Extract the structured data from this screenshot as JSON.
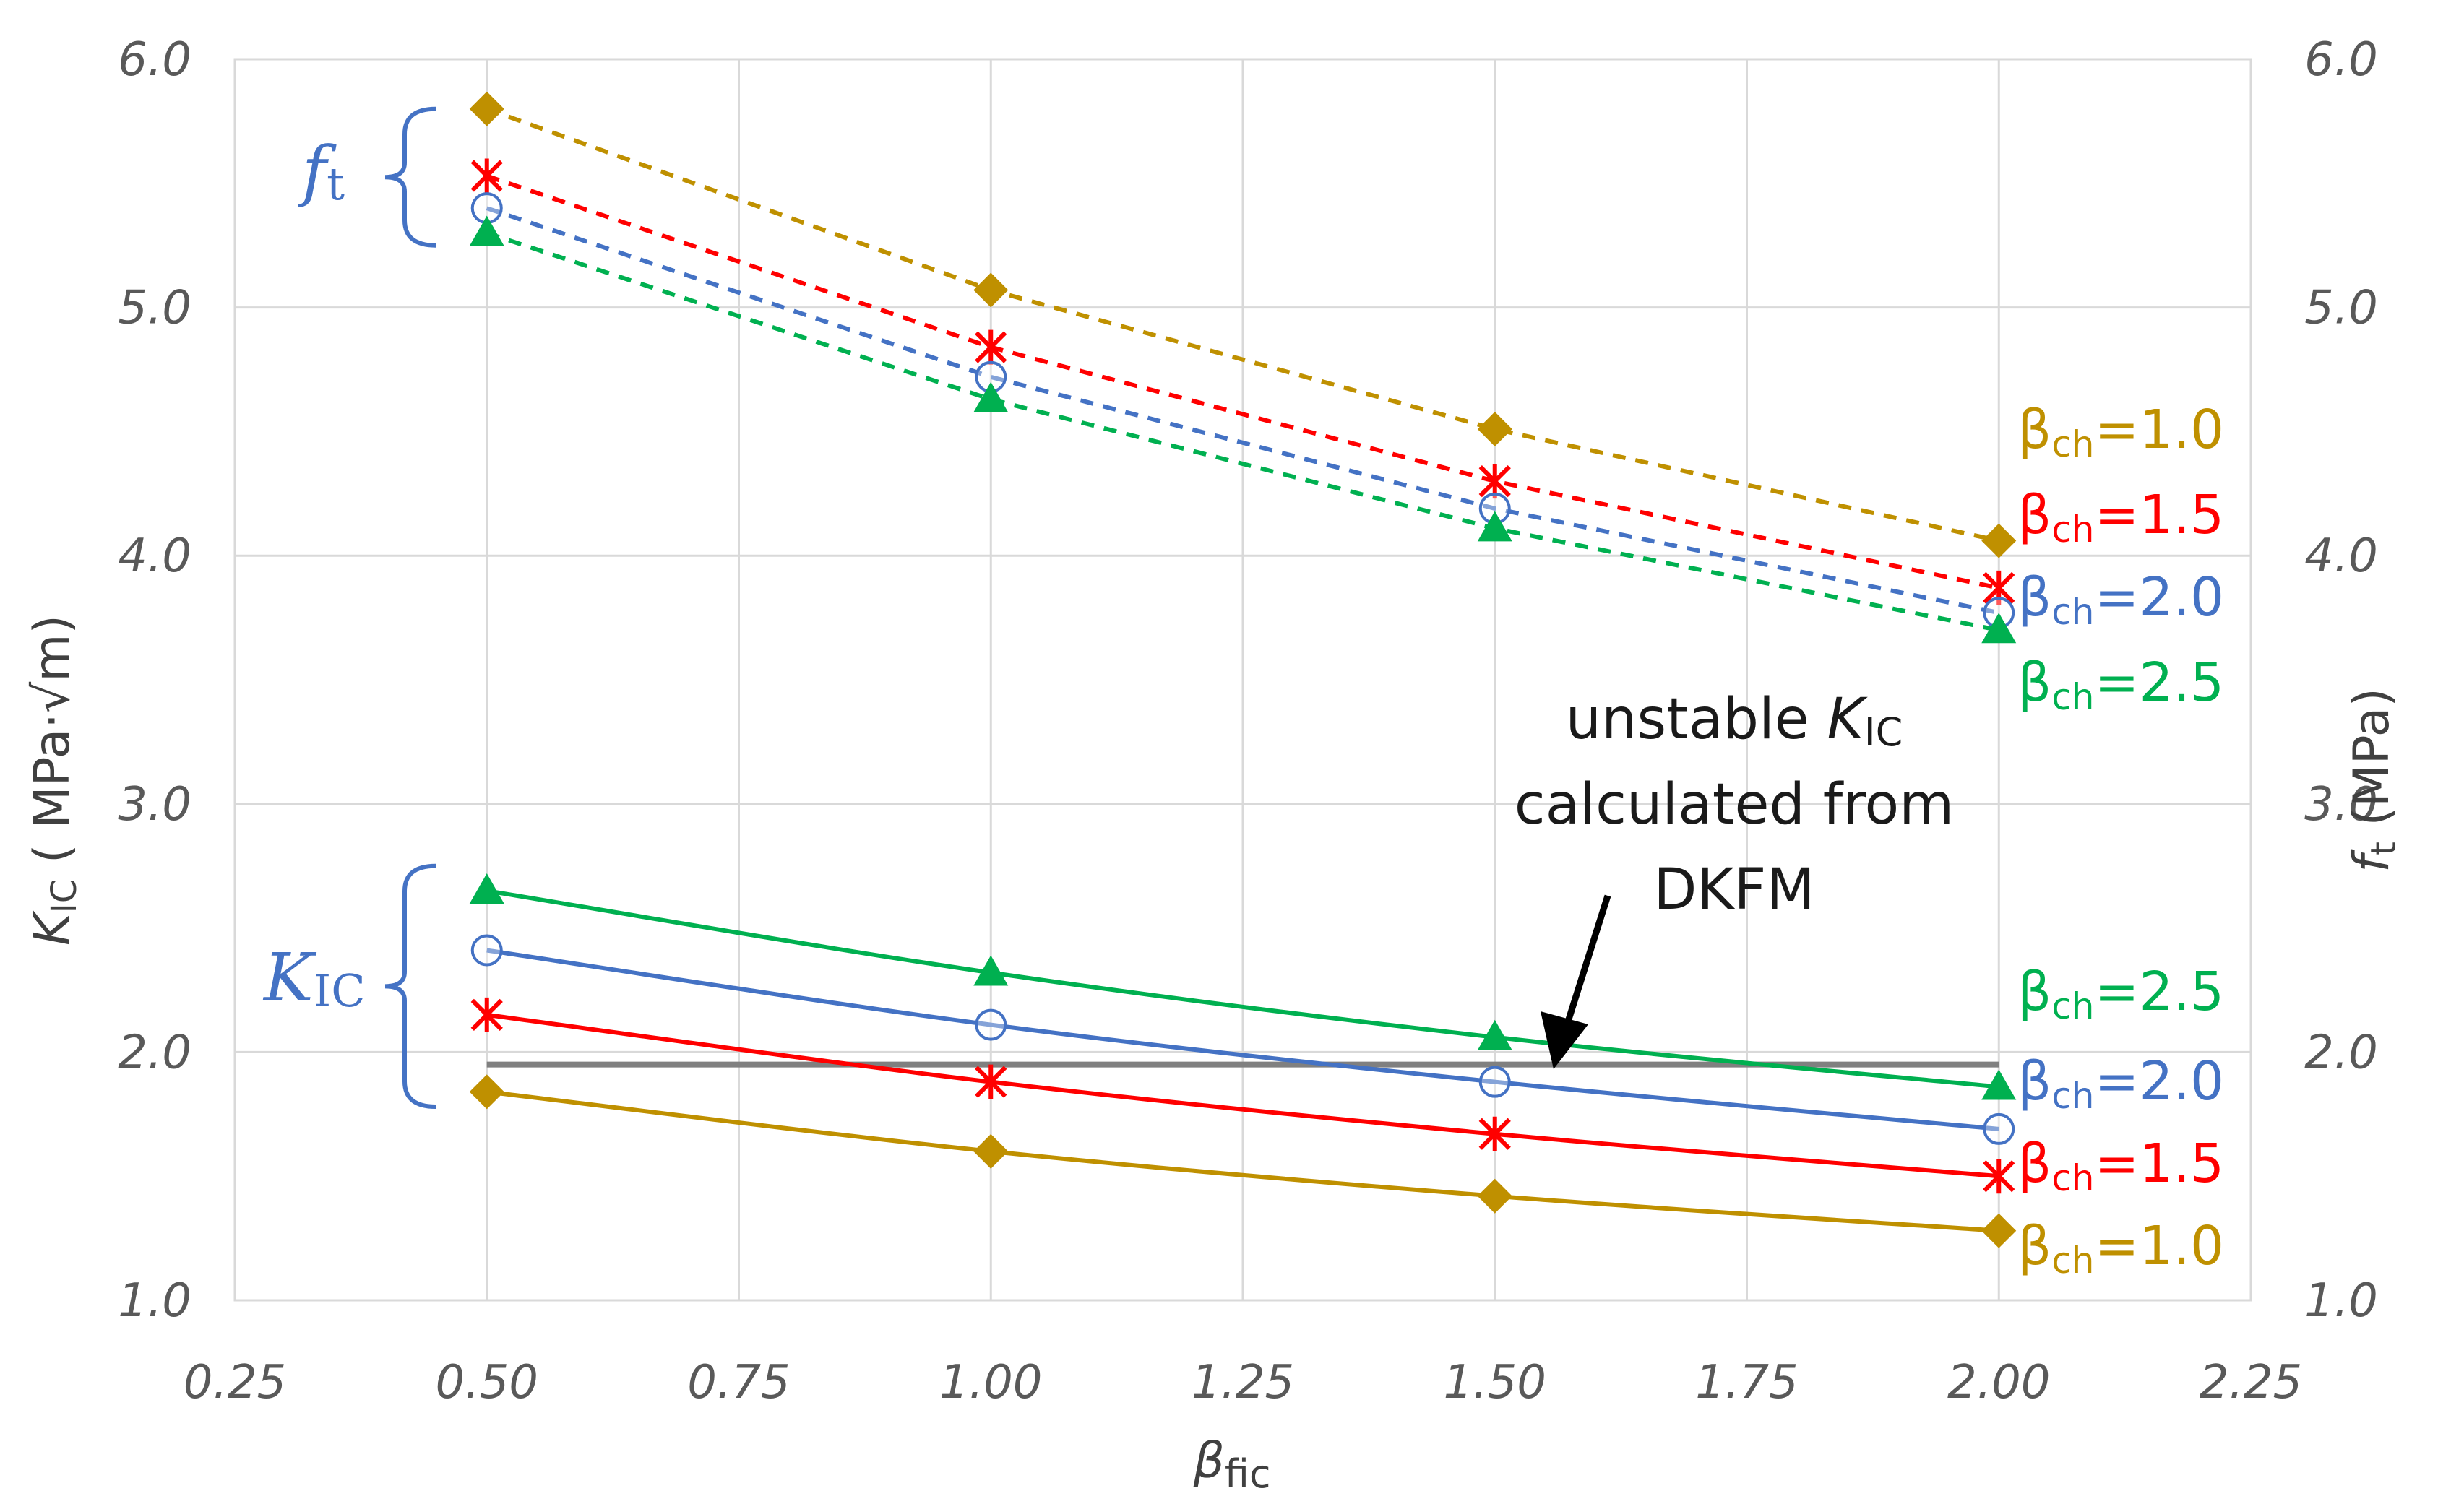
{
  "chart_data": {
    "type": "line",
    "x": [
      0.5,
      1.0,
      1.5,
      2.0
    ],
    "xlim": [
      0.25,
      2.25
    ],
    "ylim": [
      1.0,
      6.0
    ],
    "y2lim": [
      1.0,
      6.0
    ],
    "grid": true,
    "xticks": [
      "0.25",
      "0.50",
      "0.75",
      "1.00",
      "1.25",
      "1.50",
      "1.75",
      "2.00",
      "2.25"
    ],
    "yticks": [
      "1.0",
      "2.0",
      "3.0",
      "4.0",
      "5.0",
      "6.0"
    ],
    "y2ticks": [
      "1.0",
      "2.0",
      "3.0",
      "4.0",
      "5.0",
      "6.0"
    ],
    "xlabel": {
      "main": "β",
      "sub": "fic"
    },
    "ylabel": {
      "main": "K",
      "sub": "IC",
      "unit": " ( MPa·√m)"
    },
    "y2label": {
      "main": "f",
      "sub": "t",
      "unit": " (MPa)"
    },
    "ft_series": [
      {
        "name": "βch=1.0",
        "label_main": "β",
        "label_sub": "ch",
        "label_value": "=1.0",
        "color": "#bf9000",
        "marker": "diamond",
        "style": "dashed",
        "axis": "right",
        "values": [
          5.8,
          5.07,
          4.51,
          4.06
        ]
      },
      {
        "name": "βch=1.5",
        "label_main": "β",
        "label_sub": "ch",
        "label_value": "=1.5",
        "color": "#ff0000",
        "marker": "asterisk",
        "style": "dashed",
        "axis": "right",
        "values": [
          5.53,
          4.84,
          4.3,
          3.87
        ]
      },
      {
        "name": "βch=2.0",
        "label_main": "β",
        "label_sub": "ch",
        "label_value": "=2.0",
        "color": "#4472c4",
        "marker": "circle",
        "style": "dashed",
        "axis": "right",
        "values": [
          5.4,
          4.72,
          4.19,
          3.77
        ]
      },
      {
        "name": "βch=2.5",
        "label_main": "β",
        "label_sub": "ch",
        "label_value": "=2.5",
        "color": "#00b050",
        "marker": "triangle",
        "style": "dashed",
        "axis": "right",
        "values": [
          5.3,
          4.63,
          4.11,
          3.7
        ]
      }
    ],
    "kic_series": [
      {
        "name": "βch=2.5",
        "label_main": "β",
        "label_sub": "ch",
        "label_value": "=2.5",
        "color": "#00b050",
        "marker": "triangle",
        "style": "solid",
        "axis": "left",
        "values": [
          2.65,
          2.32,
          2.06,
          1.86
        ]
      },
      {
        "name": "βch=2.0",
        "label_main": "β",
        "label_sub": "ch",
        "label_value": "=2.0",
        "color": "#4472c4",
        "marker": "circle",
        "style": "solid",
        "axis": "left",
        "values": [
          2.41,
          2.11,
          1.88,
          1.69
        ]
      },
      {
        "name": "βch=1.5",
        "label_main": "β",
        "label_sub": "ch",
        "label_value": "=1.5",
        "color": "#ff0000",
        "marker": "asterisk",
        "style": "solid",
        "axis": "left",
        "values": [
          2.15,
          1.88,
          1.67,
          1.5
        ]
      },
      {
        "name": "βch=1.0",
        "label_main": "β",
        "label_sub": "ch",
        "label_value": "=1.0",
        "color": "#bf9000",
        "marker": "diamond",
        "style": "solid",
        "axis": "left",
        "values": [
          1.84,
          1.6,
          1.42,
          1.28
        ]
      }
    ],
    "reference_line": {
      "name": "unstable KIC from DKFM",
      "value": 1.95,
      "x_range": [
        0.5,
        2.0
      ],
      "color": "#808080"
    },
    "annotation": {
      "line1": "unstable ",
      "line1_main": "K",
      "line1_sub": "IC",
      "line2": "calculated from",
      "line3": "DKFM"
    },
    "bracket_ft": {
      "main": "f",
      "sub": "t",
      "range": [
        5.25,
        5.8
      ]
    },
    "bracket_kic": {
      "main": "K",
      "sub": "IC",
      "range": [
        1.78,
        2.75
      ]
    }
  }
}
